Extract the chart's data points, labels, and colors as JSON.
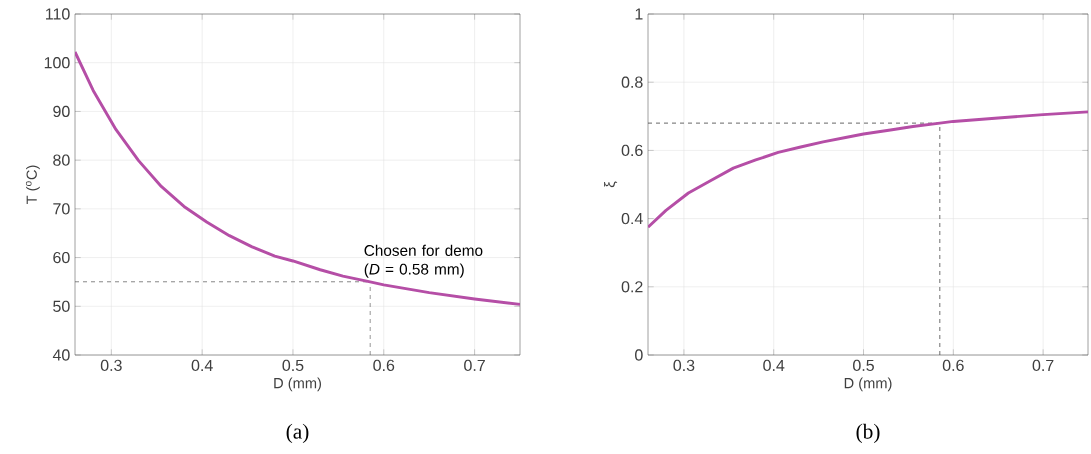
{
  "chart_data": [
    {
      "type": "line",
      "xlabel": "D (mm)",
      "ylabel": "T ($^{o}$C)",
      "xlim": [
        0.26,
        0.75
      ],
      "ylim": [
        40,
        110
      ],
      "xticks": [
        0.3,
        0.4,
        0.5,
        0.6,
        0.7
      ],
      "yticks": [
        40,
        50,
        60,
        70,
        80,
        90,
        100,
        110
      ],
      "grid": true,
      "x": [
        0.26,
        0.28,
        0.305,
        0.33,
        0.355,
        0.38,
        0.405,
        0.43,
        0.455,
        0.48,
        0.5,
        0.53,
        0.555,
        0.585,
        0.6,
        0.65,
        0.7,
        0.75
      ],
      "series": [
        {
          "color": "#b54ea6",
          "values": [
            102.2,
            94.3,
            86.3,
            79.9,
            74.6,
            70.5,
            67.3,
            64.5,
            62.2,
            60.3,
            59.3,
            57.5,
            56.2,
            55.0,
            54.4,
            52.8,
            51.5,
            50.4
          ]
        }
      ],
      "ref_lines": [
        {
          "axis": "y",
          "value": 55,
          "line_style": "dashed",
          "color": "#404040"
        },
        {
          "axis": "x",
          "value": 0.585,
          "line_style": "dashed",
          "color": "#404040"
        }
      ],
      "annotations": [
        {
          "text": "Chosen for demo (*D* = 0.58 mm)",
          "x": 0.585,
          "y": 55
        },
        "(a)"
      ]
    },
    {
      "type": "line",
      "xlabel": "D (mm)",
      "ylabel": "ξ",
      "xlim": [
        0.26,
        0.75
      ],
      "ylim": [
        0,
        1
      ],
      "xticks": [
        0.3,
        0.4,
        0.5,
        0.6,
        0.7
      ],
      "yticks": [
        0,
        0.2,
        0.4,
        0.6,
        0.8,
        1
      ],
      "grid": true,
      "x": [
        0.26,
        0.28,
        0.305,
        0.33,
        0.355,
        0.38,
        0.405,
        0.43,
        0.455,
        0.48,
        0.5,
        0.53,
        0.555,
        0.585,
        0.6,
        0.65,
        0.7,
        0.75
      ],
      "series": [
        {
          "color": "#b54ea6",
          "values": [
            0.375,
            0.424,
            0.475,
            0.512,
            0.548,
            0.572,
            0.594,
            0.61,
            0.625,
            0.638,
            0.648,
            0.66,
            0.67,
            0.68,
            0.685,
            0.695,
            0.705,
            0.713
          ]
        }
      ],
      "ref_lines": [
        {
          "axis": "y",
          "value": 0.68,
          "line_style": "dashed",
          "color": "#404040"
        },
        {
          "axis": "x",
          "value": 0.585,
          "line_style": "dashed",
          "color": "#404040"
        }
      ],
      "annotations": [
        "(b)"
      ]
    }
  ]
}
